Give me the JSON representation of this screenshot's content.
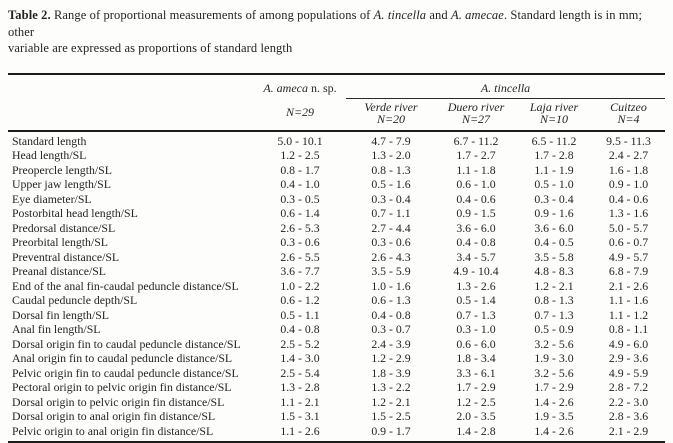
{
  "caption": {
    "label": "Table 2.",
    "text1": " Range of proportional measurements of among populations of ",
    "species1": "A. tincella",
    "text2": " and ",
    "species2": "A. amecae",
    "text3": ". Standard length is in mm; other",
    "line2": "variable are expressed as proportions of standard length"
  },
  "header": {
    "ameca_group": {
      "italic": "A. ameca",
      "roman": " n. sp.",
      "n": "N=29"
    },
    "tincella_group": "A. tincella",
    "columns": [
      {
        "name": "Verde river",
        "n": "N=20"
      },
      {
        "name": "Duero river",
        "n": "N=27"
      },
      {
        "name": "Laja river",
        "n": "N=10"
      },
      {
        "name": "Cuitzeo",
        "n": "N=4"
      }
    ]
  },
  "rows": [
    {
      "label": "Standard length",
      "values": [
        "5.0 - 10.1",
        "4.7 - 7.9",
        "6.7 - 11.2",
        "6.5 - 11.2",
        "9.5 - 11.3"
      ]
    },
    {
      "label": "Head length/SL",
      "values": [
        "1.2 - 2.5",
        "1.3 - 2.0",
        "1.7 - 2.7",
        "1.7 - 2.8",
        "2.4 - 2.7"
      ]
    },
    {
      "label": "Preopercle length/SL",
      "values": [
        "0.8 - 1.7",
        "0.8 - 1.3",
        "1.1 - 1.8",
        "1.1 - 1.9",
        "1.6 - 1.8"
      ]
    },
    {
      "label": "Upper jaw length/SL",
      "values": [
        "0.4 - 1.0",
        "0.5 - 1.6",
        "0.6 - 1.0",
        "0.5 - 1.0",
        "0.9 - 1.0"
      ]
    },
    {
      "label": "Eye diameter/SL",
      "values": [
        "0.3 - 0.5",
        "0.3 - 0.4",
        "0.4 - 0.6",
        "0.3 - 0.4",
        "0.4 - 0.6"
      ]
    },
    {
      "label": "Postorbital head length/SL",
      "values": [
        "0.6 - 1.4",
        "0.7 - 1.1",
        "0.9 - 1.5",
        "0.9 - 1.6",
        "1.3 - 1.6"
      ]
    },
    {
      "label": "Predorsal distance/SL",
      "values": [
        "2.6 - 5.3",
        "2.7 - 4.4",
        "3.6 - 6.0",
        "3.6 - 6.0",
        "5.0 - 5.7"
      ]
    },
    {
      "label": "Preorbital length/SL",
      "values": [
        "0.3 - 0.6",
        "0.3 - 0.6",
        "0.4 - 0.8",
        "0.4 - 0.5",
        "0.6 - 0.7"
      ]
    },
    {
      "label": "Preventral distance/SL",
      "values": [
        "2.6 - 5.5",
        "2.6 - 4.3",
        "3.4 - 5.7",
        "3.5 - 5.8",
        "4.9 - 5.7"
      ]
    },
    {
      "label": "Preanal distance/SL",
      "values": [
        "3.6 - 7.7",
        "3.5 - 5.9",
        "4.9 - 10.4",
        "4.8 - 8.3",
        "6.8 - 7.9"
      ]
    },
    {
      "label": "End of the anal fin-caudal peduncle distance/SL",
      "values": [
        "1.0 - 2.2",
        "1.0 - 1.6",
        "1.3 - 2.6",
        "1.2 - 2.1",
        "2.1 - 2.6"
      ]
    },
    {
      "label": "Caudal peduncle depth/SL",
      "values": [
        "0.6 - 1.2",
        "0.6 - 1.3",
        "0.5 - 1.4",
        "0.8 - 1.3",
        "1.1 - 1.6"
      ]
    },
    {
      "label": "Dorsal fin length/SL",
      "values": [
        "0.5 - 1.1",
        "0.4 - 0.8",
        "0.7 - 1.3",
        "0.7 - 1.3",
        "1.1 - 1.2"
      ]
    },
    {
      "label": "Anal fin length/SL",
      "values": [
        "0.4 - 0.8",
        "0.3 - 0.7",
        "0.3 - 1.0",
        "0.5 - 0.9",
        "0.8 - 1.1"
      ]
    },
    {
      "label": "Dorsal origin fin to caudal peduncle distance/SL",
      "values": [
        "2.5 - 5.2",
        "2.4 - 3.9",
        "0.6 - 6.0",
        "3.2 - 5.6",
        "4.9 - 6.0"
      ]
    },
    {
      "label": "Anal origin fin to caudal peduncle distance/SL",
      "values": [
        "1.4 - 3.0",
        "1.2 - 2.9",
        "1.8 - 3.4",
        "1.9 - 3.0",
        "2.9 - 3.6"
      ]
    },
    {
      "label": "Pelvic origin fin to caudal peduncle distance/SL",
      "values": [
        "2.5 - 5.4",
        "1.8 - 3.9",
        "3.3 - 6.1",
        "3.2 - 5.6",
        "4.9 - 5.9"
      ]
    },
    {
      "label": "Pectoral origin to pelvic origin fin distance/SL",
      "values": [
        "1.3 - 2.8",
        "1.3 - 2.2",
        "1.7 - 2.9",
        "1.7 - 2.9",
        "2.8 - 7.2"
      ]
    },
    {
      "label": "Dorsal origin to pelvic origin fin distance/SL",
      "values": [
        "1.1 - 2.1",
        "1.2 - 2.1",
        "1.2 - 2.5",
        "1.4 - 2.6",
        "2.2 - 3.0"
      ]
    },
    {
      "label": "Dorsal origin to anal origin fin distance/SL",
      "values": [
        "1.5 - 3.1",
        "1.5 - 2.5",
        "2.0 - 3.5",
        "1.9 - 3.5",
        "2.8 - 3.6"
      ]
    },
    {
      "label": "Pelvic origin to anal origin fin distance/SL",
      "values": [
        "1.1 - 2.6",
        "0.9 - 1.7",
        "1.4 - 2.8",
        "1.4 - 2.6",
        "2.1 - 2.9"
      ]
    }
  ],
  "colors": {
    "text": "#242424",
    "rule": "#1c1c1c",
    "background": "#fdfdfc"
  }
}
